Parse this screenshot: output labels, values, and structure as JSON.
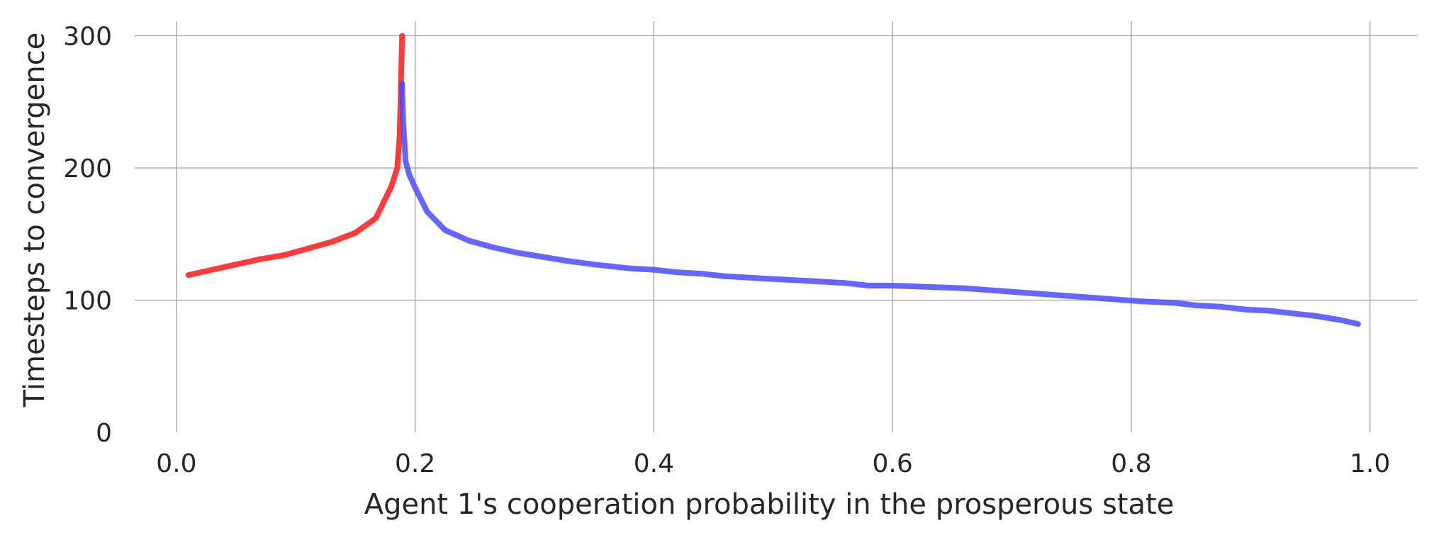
{
  "chart_data": {
    "type": "line",
    "title": "",
    "xlabel": "Agent 1's cooperation probability in the prosperous state",
    "ylabel": "Timesteps to convergence",
    "xlim": [
      -0.035,
      1.04
    ],
    "ylim": [
      0,
      311
    ],
    "xticks": [
      0.0,
      0.2,
      0.4,
      0.6,
      0.8,
      1.0
    ],
    "xtick_labels": [
      "0.0",
      "0.2",
      "0.4",
      "0.6",
      "0.8",
      "1.0"
    ],
    "yticks": [
      0,
      100,
      200,
      300
    ],
    "ytick_labels": [
      "0",
      "100",
      "200",
      "300"
    ],
    "grid": true,
    "legend": false,
    "series": [
      {
        "color": "#ff1f1f",
        "opacity": 0.88,
        "x": [
          0.01,
          0.03,
          0.05,
          0.07,
          0.09,
          0.11,
          0.13,
          0.15,
          0.167,
          0.18,
          0.185,
          0.187,
          0.188,
          0.189
        ],
        "y": [
          119,
          123,
          127,
          131,
          134,
          139,
          144,
          151,
          162,
          186,
          200,
          225,
          260,
          300
        ]
      },
      {
        "color": "#4a4aff",
        "opacity": 0.85,
        "x": [
          0.189,
          0.19,
          0.192,
          0.195,
          0.2,
          0.21,
          0.225,
          0.245,
          0.265,
          0.285,
          0.305,
          0.325,
          0.35,
          0.38,
          0.4,
          0.42,
          0.44,
          0.46,
          0.48,
          0.5,
          0.52,
          0.54,
          0.56,
          0.58,
          0.6,
          0.63,
          0.66,
          0.69,
          0.72,
          0.75,
          0.78,
          0.81,
          0.835,
          0.855,
          0.875,
          0.895,
          0.915,
          0.935,
          0.955,
          0.975,
          0.99
        ],
        "y": [
          264,
          235,
          205,
          195,
          185,
          167,
          153,
          145,
          140,
          136,
          133,
          130,
          127,
          124,
          123,
          121,
          120,
          118,
          117,
          116,
          115,
          114,
          113,
          111,
          111,
          110,
          109,
          107,
          105,
          103,
          101,
          99,
          98,
          96,
          95,
          93,
          92,
          90,
          88,
          85,
          82
        ]
      }
    ]
  }
}
